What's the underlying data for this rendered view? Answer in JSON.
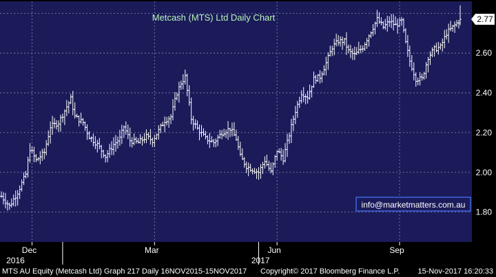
{
  "chart_data": {
    "type": "ohlc",
    "title": "Metcash (MTS) Ltd Daily Chart",
    "ylim": [
      1.65,
      2.86
    ],
    "y_ticks": [
      "1.80",
      "2.00",
      "2.20",
      "2.40",
      "2.60"
    ],
    "y_tick_values": [
      1.8,
      2.0,
      2.2,
      2.4,
      2.6
    ],
    "x_ticks": [
      {
        "label": "Dec",
        "year": "2016",
        "index": 15
      },
      {
        "label": "Mar",
        "index": 75
      },
      {
        "label": "Jun",
        "year": "2017",
        "index": 135
      },
      {
        "label": "Sep",
        "index": 195
      }
    ],
    "year_dividers": [
      30,
      126
    ],
    "last_value": "2.77",
    "last_price": 2.77,
    "close_path": [
      [
        0,
        1.88
      ],
      [
        4,
        1.83
      ],
      [
        8,
        1.9
      ],
      [
        12,
        1.99
      ],
      [
        14,
        2.12
      ],
      [
        17,
        2.06
      ],
      [
        21,
        2.1
      ],
      [
        24,
        2.23
      ],
      [
        28,
        2.25
      ],
      [
        32,
        2.33
      ],
      [
        34,
        2.37
      ],
      [
        36,
        2.28
      ],
      [
        40,
        2.25
      ],
      [
        43,
        2.18
      ],
      [
        47,
        2.14
      ],
      [
        51,
        2.08
      ],
      [
        55,
        2.14
      ],
      [
        58,
        2.17
      ],
      [
        60,
        2.23
      ],
      [
        63,
        2.16
      ],
      [
        67,
        2.15
      ],
      [
        71,
        2.18
      ],
      [
        74,
        2.16
      ],
      [
        77,
        2.21
      ],
      [
        80,
        2.26
      ],
      [
        83,
        2.28
      ],
      [
        86,
        2.4
      ],
      [
        88,
        2.45
      ],
      [
        90,
        2.48
      ],
      [
        93,
        2.27
      ],
      [
        96,
        2.22
      ],
      [
        100,
        2.17
      ],
      [
        104,
        2.15
      ],
      [
        108,
        2.2
      ],
      [
        112,
        2.22
      ],
      [
        115,
        2.17
      ],
      [
        117,
        2.08
      ],
      [
        120,
        2.03
      ],
      [
        124,
        2.01
      ],
      [
        126,
        2.0
      ],
      [
        129,
        2.06
      ],
      [
        132,
        2.0
      ],
      [
        135,
        2.11
      ],
      [
        138,
        2.07
      ],
      [
        140,
        2.15
      ],
      [
        142,
        2.23
      ],
      [
        144,
        2.31
      ],
      [
        147,
        2.4
      ],
      [
        150,
        2.38
      ],
      [
        153,
        2.47
      ],
      [
        156,
        2.48
      ],
      [
        159,
        2.55
      ],
      [
        162,
        2.63
      ],
      [
        165,
        2.66
      ],
      [
        168,
        2.66
      ],
      [
        170,
        2.61
      ],
      [
        173,
        2.59
      ],
      [
        177,
        2.63
      ],
      [
        180,
        2.69
      ],
      [
        184,
        2.77
      ],
      [
        187,
        2.73
      ],
      [
        190,
        2.76
      ],
      [
        193,
        2.74
      ],
      [
        196,
        2.76
      ],
      [
        198,
        2.65
      ],
      [
        200,
        2.56
      ],
      [
        203,
        2.47
      ],
      [
        206,
        2.47
      ],
      [
        209,
        2.58
      ],
      [
        212,
        2.62
      ],
      [
        215,
        2.63
      ],
      [
        218,
        2.7
      ],
      [
        221,
        2.73
      ],
      [
        224,
        2.76
      ]
    ]
  },
  "footer": {
    "left": "MTS AU Equity (Metcash Ltd) Graph 217  Daily 16NOV2015-15NOV2017",
    "middle": "Copyright© 2017 Bloomberg Finance L.P.",
    "right": "15-Nov-2017 16:20:33"
  },
  "watermark": "info@marketmatters.com.au",
  "colors": {
    "plot_bg": "#1b1b5a",
    "bars": "#ffffff",
    "grid": "#8c8cb4",
    "last_box": "#ffffff",
    "title": "#b9f5b9"
  }
}
